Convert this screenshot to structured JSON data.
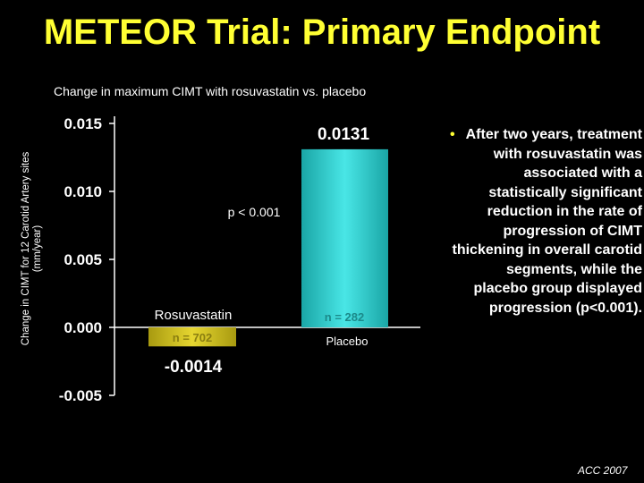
{
  "slide": {
    "title": "METEOR Trial: Primary Endpoint",
    "subtitle": "Change in maximum CIMT with rosuvastatin vs. placebo",
    "bullet_marker": "•",
    "bullet_text": "After two years, treatment with rosuvastatin was associated with a statistically significant reduction in the rate of progression of CIMT thickening in overall carotid segments, while the placebo group displayed progression (p<0.001).",
    "source": "ACC 2007"
  },
  "chart_data": {
    "type": "bar",
    "ylabel_lines": [
      "Change in CIMT for 12 Carotid Artery sites",
      "(mm/year)"
    ],
    "ylim": [
      -0.005,
      0.015
    ],
    "yticks": [
      "0.015",
      "0.010",
      "0.005",
      "0.000",
      "-0.005"
    ],
    "yticks_values": [
      0.015,
      0.01,
      0.005,
      0.0,
      -0.005
    ],
    "categories": [
      "Rosuvastatin",
      "Placebo"
    ],
    "values": [
      -0.0014,
      0.0131
    ],
    "value_labels": [
      "-0.0014",
      "0.0131"
    ],
    "n_labels": [
      "n = 702",
      "n = 282"
    ],
    "annotation": "p < 0.001",
    "colors": {
      "rosuvastatin": "#d4c41a",
      "placebo": "#35d4d4",
      "axis": "#ffffff",
      "title": "#ffff33",
      "background": "#000000"
    }
  }
}
